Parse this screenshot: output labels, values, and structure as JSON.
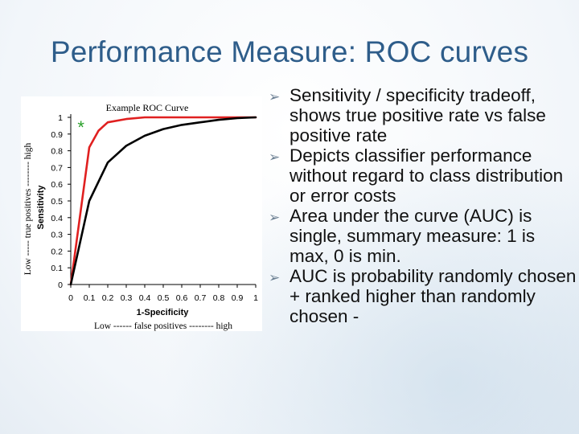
{
  "slide": {
    "title": "Performance Measure: ROC curves",
    "bullets": [
      "Sensitivity / specificity tradeoff, shows true positive rate vs false positive rate",
      " Depicts classifier performance without regard to class distribution or error costs",
      "Area under the curve (AUC) is single, summary measure: 1 is max, 0 is min.",
      "AUC is probability randomly chosen + ranked higher than randomly chosen -"
    ],
    "bullet_icon": "arrowhead-bullet-icon",
    "colors": {
      "title": "#2e5d8a",
      "text": "#111111"
    }
  },
  "chart_data": {
    "type": "line",
    "title": "Example ROC Curve",
    "xlabel": "1-Specificity",
    "ylabel": "Sensitivity",
    "xlabel_outer": "Low ------   false positives -------- high",
    "ylabel_outer": "Low -----  true positives -------- high",
    "x_ticks": [
      "0",
      "0.1",
      "0.2",
      "0.3",
      "0.4",
      "0.5",
      "0.6",
      "0.7",
      "0.8",
      "0.9",
      "1"
    ],
    "y_ticks": [
      "0",
      "0.1",
      "0.2",
      "0.3",
      "0.4",
      "0.5",
      "0.6",
      "0.7",
      "0.8",
      "0.9",
      "1"
    ],
    "xlim": [
      0,
      1
    ],
    "ylim": [
      0,
      1
    ],
    "grid": false,
    "legend": "none",
    "marker_label": "*",
    "marker_point": [
      0.02,
      0.97
    ],
    "series": [
      {
        "color": "#e02020",
        "x": [
          0,
          0.1,
          0.15,
          0.2,
          0.3,
          0.4,
          0.5,
          0.6,
          0.7,
          0.8,
          1
        ],
        "y": [
          0,
          0.82,
          0.92,
          0.97,
          0.99,
          1.0,
          1.0,
          1.0,
          1.0,
          1.0,
          1.0
        ]
      },
      {
        "color": "#000000",
        "x": [
          0,
          0.1,
          0.2,
          0.3,
          0.4,
          0.5,
          0.6,
          0.7,
          0.8,
          0.9,
          1
        ],
        "y": [
          0,
          0.5,
          0.73,
          0.83,
          0.89,
          0.93,
          0.955,
          0.97,
          0.985,
          0.995,
          1.0
        ]
      }
    ]
  }
}
